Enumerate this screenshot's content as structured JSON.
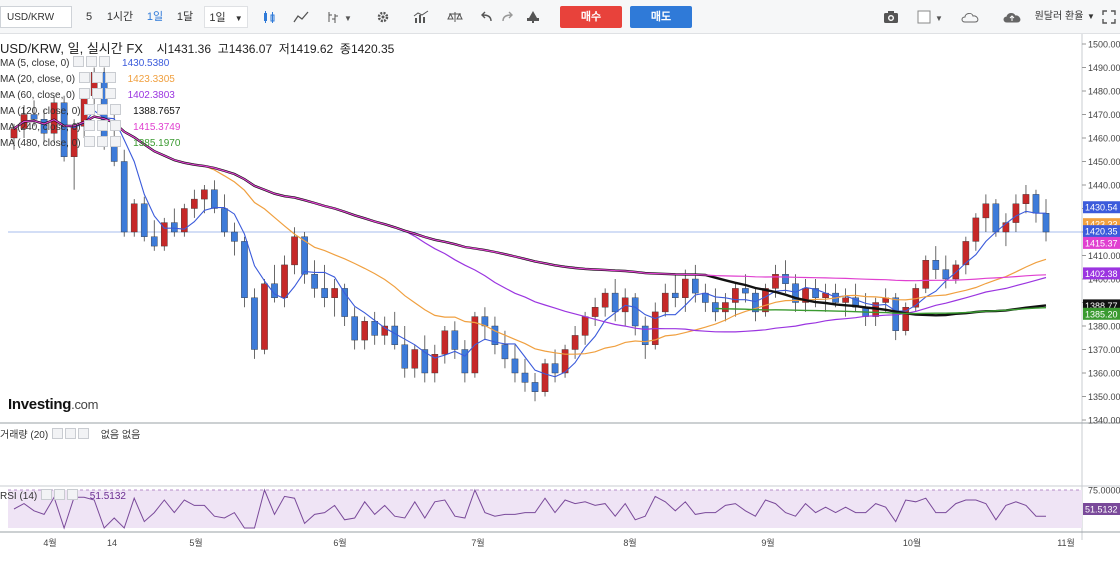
{
  "toolbar": {
    "symbol": "USD/KRW",
    "intervals": [
      "5",
      "1시간",
      "1일",
      "1달",
      "1일"
    ],
    "active_interval": 2,
    "buy_label": "매수",
    "sell_label": "매도",
    "right_label": "원달러 환율",
    "icons": [
      "candle-type-icon",
      "line-tool-icon",
      "indicator-icon",
      "settings-icon",
      "chart-type-icon",
      "compare-icon",
      "undo-icon",
      "redo-icon",
      "alert-icon",
      "camera-icon",
      "color-box-icon",
      "cloud-load-icon",
      "cloud-save-icon",
      "expand-icon"
    ]
  },
  "header": {
    "title": "USD/KRW, 일, 실시간 FX",
    "ohlc": [
      {
        "label": "시",
        "value": "1431.36"
      },
      {
        "label": "고",
        "value": "1436.07"
      },
      {
        "label": "저",
        "value": "1419.62"
      },
      {
        "label": "종",
        "value": "1420.35"
      }
    ]
  },
  "indicators": [
    {
      "label": "MA (5, close, 0)",
      "value": "1430.5380",
      "color": "#3b5bdb"
    },
    {
      "label": "MA (20, close, 0)",
      "value": "1423.3305",
      "color": "#f0a040"
    },
    {
      "label": "MA (60, close, 0)",
      "value": "1402.3803",
      "color": "#9b35e0"
    },
    {
      "label": "MA (120, close, 0)",
      "value": "1388.7657",
      "color": "#111111"
    },
    {
      "label": "MA (240, close, 0)",
      "value": "1415.3749",
      "color": "#e040d0"
    },
    {
      "label": "MA (480, close, 0)",
      "value": "1385.1970",
      "color": "#3a9a30"
    }
  ],
  "volume": {
    "label": "거래량 (20)",
    "values": "없음 없음"
  },
  "rsi": {
    "label": "RSI (14)",
    "value": "51.5132",
    "axis_label": "75.0000"
  },
  "brand": {
    "name": "Investing",
    "suffix": ".com"
  },
  "chart_data": {
    "type": "candlestick",
    "symbol": "USD/KRW",
    "interval": "1D",
    "y_ticks": [
      "1500.00",
      "1490.00",
      "1480.00",
      "1470.00",
      "1460.00",
      "1450.00",
      "1440.00",
      "1430.00",
      "1420.00",
      "1410.00",
      "1400.00",
      "1390.00",
      "1380.00",
      "1370.00",
      "1360.00",
      "1350.00",
      "1340.00"
    ],
    "ylim": [
      1340,
      1500
    ],
    "x_ticks": [
      "4월",
      "14",
      "5월",
      "6월",
      "7월",
      "8월",
      "9월",
      "10월",
      "11월"
    ],
    "price_tags": [
      {
        "value": "1430.54",
        "color": "#3b5bdb"
      },
      {
        "value": "1423.33",
        "color": "#f0a040"
      },
      {
        "value": "1420.35",
        "color": "#3b5bdb"
      },
      {
        "value": "1415.37",
        "color": "#e040d0"
      },
      {
        "value": "1402.38",
        "color": "#9b35e0"
      },
      {
        "value": "1388.77",
        "color": "#111111"
      },
      {
        "value": "1385.20",
        "color": "#3a9a30"
      }
    ],
    "candles": [
      [
        1460,
        1466,
        1455,
        1464
      ],
      [
        1464,
        1474,
        1460,
        1470
      ],
      [
        1470,
        1476,
        1465,
        1468
      ],
      [
        1468,
        1472,
        1458,
        1462
      ],
      [
        1462,
        1478,
        1458,
        1475
      ],
      [
        1475,
        1478,
        1450,
        1452
      ],
      [
        1452,
        1468,
        1438,
        1465
      ],
      [
        1465,
        1480,
        1460,
        1478
      ],
      [
        1478,
        1490,
        1470,
        1488
      ],
      [
        1488,
        1490,
        1455,
        1460
      ],
      [
        1460,
        1470,
        1448,
        1450
      ],
      [
        1450,
        1455,
        1418,
        1420
      ],
      [
        1420,
        1434,
        1418,
        1432
      ],
      [
        1432,
        1435,
        1416,
        1418
      ],
      [
        1418,
        1425,
        1412,
        1414
      ],
      [
        1414,
        1426,
        1412,
        1424
      ],
      [
        1424,
        1430,
        1418,
        1420
      ],
      [
        1420,
        1432,
        1418,
        1430
      ],
      [
        1430,
        1438,
        1426,
        1434
      ],
      [
        1434,
        1440,
        1428,
        1438
      ],
      [
        1438,
        1442,
        1428,
        1430
      ],
      [
        1430,
        1436,
        1418,
        1420
      ],
      [
        1420,
        1424,
        1410,
        1416
      ],
      [
        1416,
        1418,
        1388,
        1392
      ],
      [
        1392,
        1396,
        1366,
        1370
      ],
      [
        1370,
        1400,
        1368,
        1398
      ],
      [
        1398,
        1406,
        1390,
        1392
      ],
      [
        1392,
        1410,
        1388,
        1406
      ],
      [
        1406,
        1422,
        1402,
        1418
      ],
      [
        1418,
        1420,
        1398,
        1402
      ],
      [
        1402,
        1408,
        1392,
        1396
      ],
      [
        1396,
        1406,
        1388,
        1392
      ],
      [
        1392,
        1400,
        1384,
        1396
      ],
      [
        1396,
        1398,
        1380,
        1384
      ],
      [
        1384,
        1388,
        1370,
        1374
      ],
      [
        1374,
        1384,
        1370,
        1382
      ],
      [
        1382,
        1386,
        1372,
        1376
      ],
      [
        1376,
        1384,
        1372,
        1380
      ],
      [
        1380,
        1386,
        1370,
        1372
      ],
      [
        1372,
        1380,
        1358,
        1362
      ],
      [
        1362,
        1372,
        1358,
        1370
      ],
      [
        1370,
        1376,
        1356,
        1360
      ],
      [
        1360,
        1372,
        1356,
        1368
      ],
      [
        1368,
        1380,
        1364,
        1378
      ],
      [
        1378,
        1382,
        1366,
        1370
      ],
      [
        1370,
        1374,
        1356,
        1360
      ],
      [
        1360,
        1386,
        1358,
        1384
      ],
      [
        1384,
        1388,
        1374,
        1380
      ],
      [
        1380,
        1384,
        1368,
        1372
      ],
      [
        1372,
        1378,
        1362,
        1366
      ],
      [
        1366,
        1372,
        1356,
        1360
      ],
      [
        1360,
        1366,
        1352,
        1356
      ],
      [
        1356,
        1360,
        1348,
        1352
      ],
      [
        1352,
        1366,
        1350,
        1364
      ],
      [
        1364,
        1370,
        1356,
        1360
      ],
      [
        1360,
        1372,
        1358,
        1370
      ],
      [
        1370,
        1380,
        1366,
        1376
      ],
      [
        1376,
        1386,
        1372,
        1384
      ],
      [
        1384,
        1392,
        1380,
        1388
      ],
      [
        1388,
        1396,
        1384,
        1394
      ],
      [
        1394,
        1400,
        1382,
        1386
      ],
      [
        1386,
        1396,
        1380,
        1392
      ],
      [
        1392,
        1394,
        1376,
        1380
      ],
      [
        1380,
        1384,
        1366,
        1372
      ],
      [
        1372,
        1390,
        1370,
        1386
      ],
      [
        1386,
        1398,
        1384,
        1394
      ],
      [
        1394,
        1402,
        1388,
        1392
      ],
      [
        1392,
        1404,
        1386,
        1400
      ],
      [
        1400,
        1406,
        1390,
        1394
      ],
      [
        1394,
        1398,
        1386,
        1390
      ],
      [
        1390,
        1396,
        1382,
        1386
      ],
      [
        1386,
        1394,
        1382,
        1390
      ],
      [
        1390,
        1398,
        1384,
        1396
      ],
      [
        1396,
        1402,
        1390,
        1394
      ],
      [
        1394,
        1396,
        1382,
        1386
      ],
      [
        1386,
        1398,
        1384,
        1396
      ],
      [
        1396,
        1406,
        1392,
        1402
      ],
      [
        1402,
        1408,
        1394,
        1398
      ],
      [
        1398,
        1402,
        1386,
        1390
      ],
      [
        1390,
        1400,
        1386,
        1396
      ],
      [
        1396,
        1400,
        1388,
        1392
      ],
      [
        1392,
        1398,
        1386,
        1394
      ],
      [
        1394,
        1398,
        1388,
        1390
      ],
      [
        1390,
        1396,
        1384,
        1392
      ],
      [
        1392,
        1398,
        1386,
        1388
      ],
      [
        1388,
        1394,
        1380,
        1384
      ],
      [
        1384,
        1392,
        1380,
        1390
      ],
      [
        1390,
        1396,
        1386,
        1392
      ],
      [
        1392,
        1394,
        1374,
        1378
      ],
      [
        1378,
        1390,
        1376,
        1388
      ],
      [
        1388,
        1398,
        1386,
        1396
      ],
      [
        1396,
        1410,
        1394,
        1408
      ],
      [
        1408,
        1414,
        1400,
        1404
      ],
      [
        1404,
        1410,
        1396,
        1400
      ],
      [
        1400,
        1408,
        1398,
        1406
      ],
      [
        1406,
        1418,
        1402,
        1416
      ],
      [
        1416,
        1428,
        1412,
        1426
      ],
      [
        1426,
        1436,
        1420,
        1432
      ],
      [
        1432,
        1434,
        1418,
        1420
      ],
      [
        1420,
        1428,
        1414,
        1424
      ],
      [
        1424,
        1436,
        1420,
        1432
      ],
      [
        1432,
        1440,
        1428,
        1436
      ],
      [
        1436,
        1438,
        1424,
        1428
      ],
      [
        1428,
        1434,
        1416,
        1420
      ]
    ]
  }
}
